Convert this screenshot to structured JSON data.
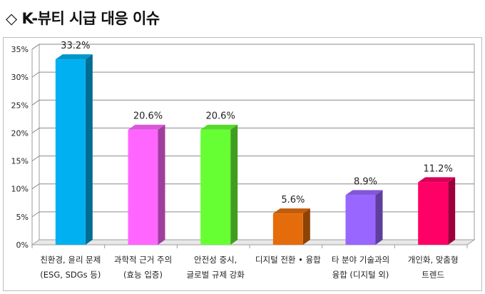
{
  "title": "◇ K-뷰티 시급 대응 이슈",
  "chart_data": {
    "type": "bar",
    "title": "",
    "xlabel": "",
    "ylabel": "",
    "ylim": [
      0,
      35
    ],
    "yticks": [
      "0%",
      "5%",
      "10%",
      "15%",
      "20%",
      "25%",
      "30%",
      "35%"
    ],
    "grid": true,
    "legend": "none",
    "categories": [
      [
        "친환경, 윤리 문제",
        "(ESG, SDGs 등)"
      ],
      [
        "과학적 근거 주의",
        "(효능 입증)"
      ],
      [
        "안전성 중시,",
        "글로벌 규제 강화"
      ],
      [
        "디지털 전환 • 융합"
      ],
      [
        "타 분야 기술과의",
        "융합 (디지털 외)"
      ],
      [
        "개인화, 맞춤형",
        "트렌드"
      ]
    ],
    "values": [
      33.2,
      20.6,
      20.6,
      5.6,
      8.9,
      11.2
    ],
    "data_labels": [
      "33.2%",
      "20.6%",
      "20.6%",
      "5.6%",
      "8.9%",
      "11.2%"
    ],
    "colors": [
      "#00b0f0",
      "#ff66ff",
      "#66ff33",
      "#e46c0a",
      "#9966ff",
      "#ff0066"
    ]
  }
}
